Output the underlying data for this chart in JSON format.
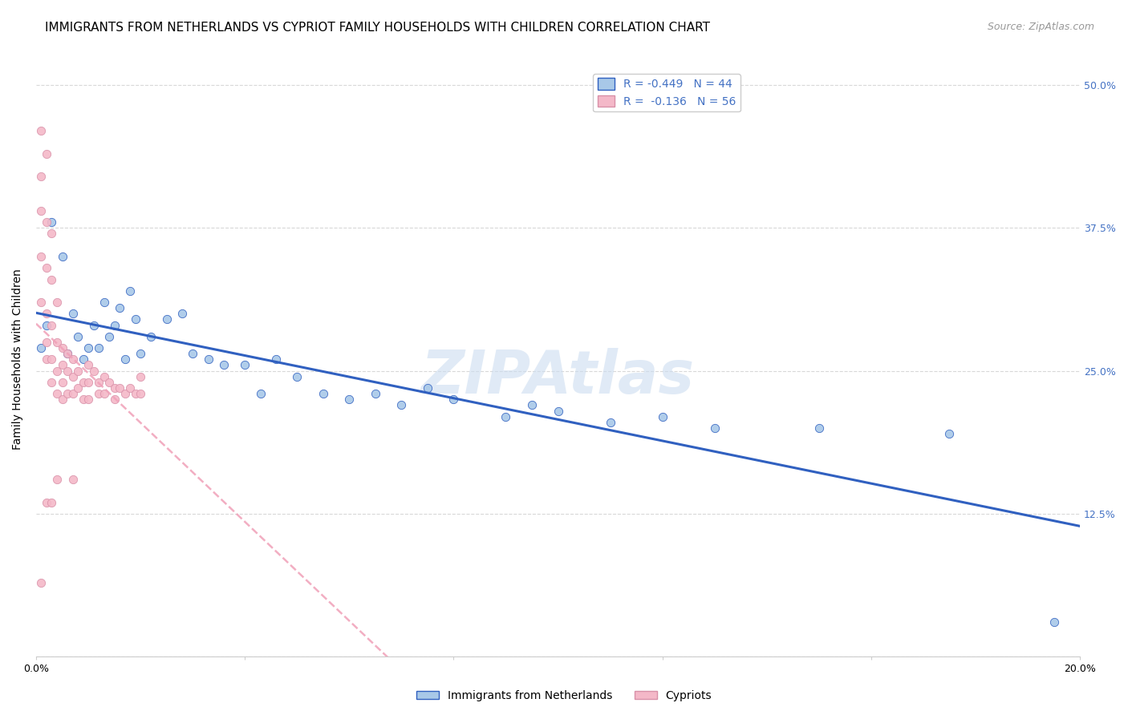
{
  "title": "IMMIGRANTS FROM NETHERLANDS VS CYPRIOT FAMILY HOUSEHOLDS WITH CHILDREN CORRELATION CHART",
  "source": "Source: ZipAtlas.com",
  "ylabel": "Family Households with Children",
  "legend_labels": [
    "Immigrants from Netherlands",
    "Cypriots"
  ],
  "R_netherlands": -0.449,
  "N_netherlands": 44,
  "R_cypriots": -0.136,
  "N_cypriots": 56,
  "xlim": [
    0.0,
    0.2
  ],
  "ylim": [
    0.0,
    0.52
  ],
  "background_color": "#ffffff",
  "grid_color": "#d8d8d8",
  "netherlands_scatter_color": "#a8c8e8",
  "cypriots_scatter_color": "#f4b8c8",
  "netherlands_line_color": "#3060c0",
  "cypriots_line_color": "#f0a0b8",
  "netherlands_x": [
    0.001,
    0.002,
    0.003,
    0.005,
    0.006,
    0.007,
    0.008,
    0.009,
    0.01,
    0.011,
    0.012,
    0.013,
    0.014,
    0.015,
    0.016,
    0.017,
    0.018,
    0.019,
    0.02,
    0.022,
    0.025,
    0.028,
    0.03,
    0.033,
    0.036,
    0.04,
    0.043,
    0.046,
    0.05,
    0.055,
    0.06,
    0.065,
    0.07,
    0.075,
    0.08,
    0.09,
    0.095,
    0.1,
    0.11,
    0.12,
    0.13,
    0.15,
    0.175,
    0.195
  ],
  "netherlands_y": [
    0.27,
    0.29,
    0.38,
    0.35,
    0.265,
    0.3,
    0.28,
    0.26,
    0.27,
    0.29,
    0.27,
    0.31,
    0.28,
    0.29,
    0.305,
    0.26,
    0.32,
    0.295,
    0.265,
    0.28,
    0.295,
    0.3,
    0.265,
    0.26,
    0.255,
    0.255,
    0.23,
    0.26,
    0.245,
    0.23,
    0.225,
    0.23,
    0.22,
    0.235,
    0.225,
    0.21,
    0.22,
    0.215,
    0.205,
    0.21,
    0.2,
    0.2,
    0.195,
    0.03
  ],
  "cypriots_x": [
    0.001,
    0.001,
    0.001,
    0.001,
    0.001,
    0.002,
    0.002,
    0.002,
    0.002,
    0.002,
    0.002,
    0.003,
    0.003,
    0.003,
    0.003,
    0.003,
    0.004,
    0.004,
    0.004,
    0.004,
    0.005,
    0.005,
    0.005,
    0.005,
    0.006,
    0.006,
    0.006,
    0.007,
    0.007,
    0.007,
    0.008,
    0.008,
    0.009,
    0.009,
    0.01,
    0.01,
    0.01,
    0.011,
    0.012,
    0.012,
    0.013,
    0.013,
    0.014,
    0.015,
    0.015,
    0.016,
    0.017,
    0.018,
    0.019,
    0.02,
    0.02,
    0.007,
    0.004,
    0.001,
    0.002,
    0.003
  ],
  "cypriots_y": [
    0.46,
    0.42,
    0.39,
    0.35,
    0.31,
    0.44,
    0.38,
    0.34,
    0.3,
    0.275,
    0.26,
    0.37,
    0.33,
    0.29,
    0.26,
    0.24,
    0.31,
    0.275,
    0.25,
    0.23,
    0.27,
    0.255,
    0.24,
    0.225,
    0.265,
    0.25,
    0.23,
    0.26,
    0.245,
    0.23,
    0.25,
    0.235,
    0.24,
    0.225,
    0.255,
    0.24,
    0.225,
    0.25,
    0.24,
    0.23,
    0.245,
    0.23,
    0.24,
    0.235,
    0.225,
    0.235,
    0.23,
    0.235,
    0.23,
    0.245,
    0.23,
    0.155,
    0.155,
    0.065,
    0.135,
    0.135
  ],
  "title_fontsize": 11,
  "source_fontsize": 9,
  "axis_label_fontsize": 10,
  "tick_fontsize": 9,
  "legend_fontsize": 10
}
